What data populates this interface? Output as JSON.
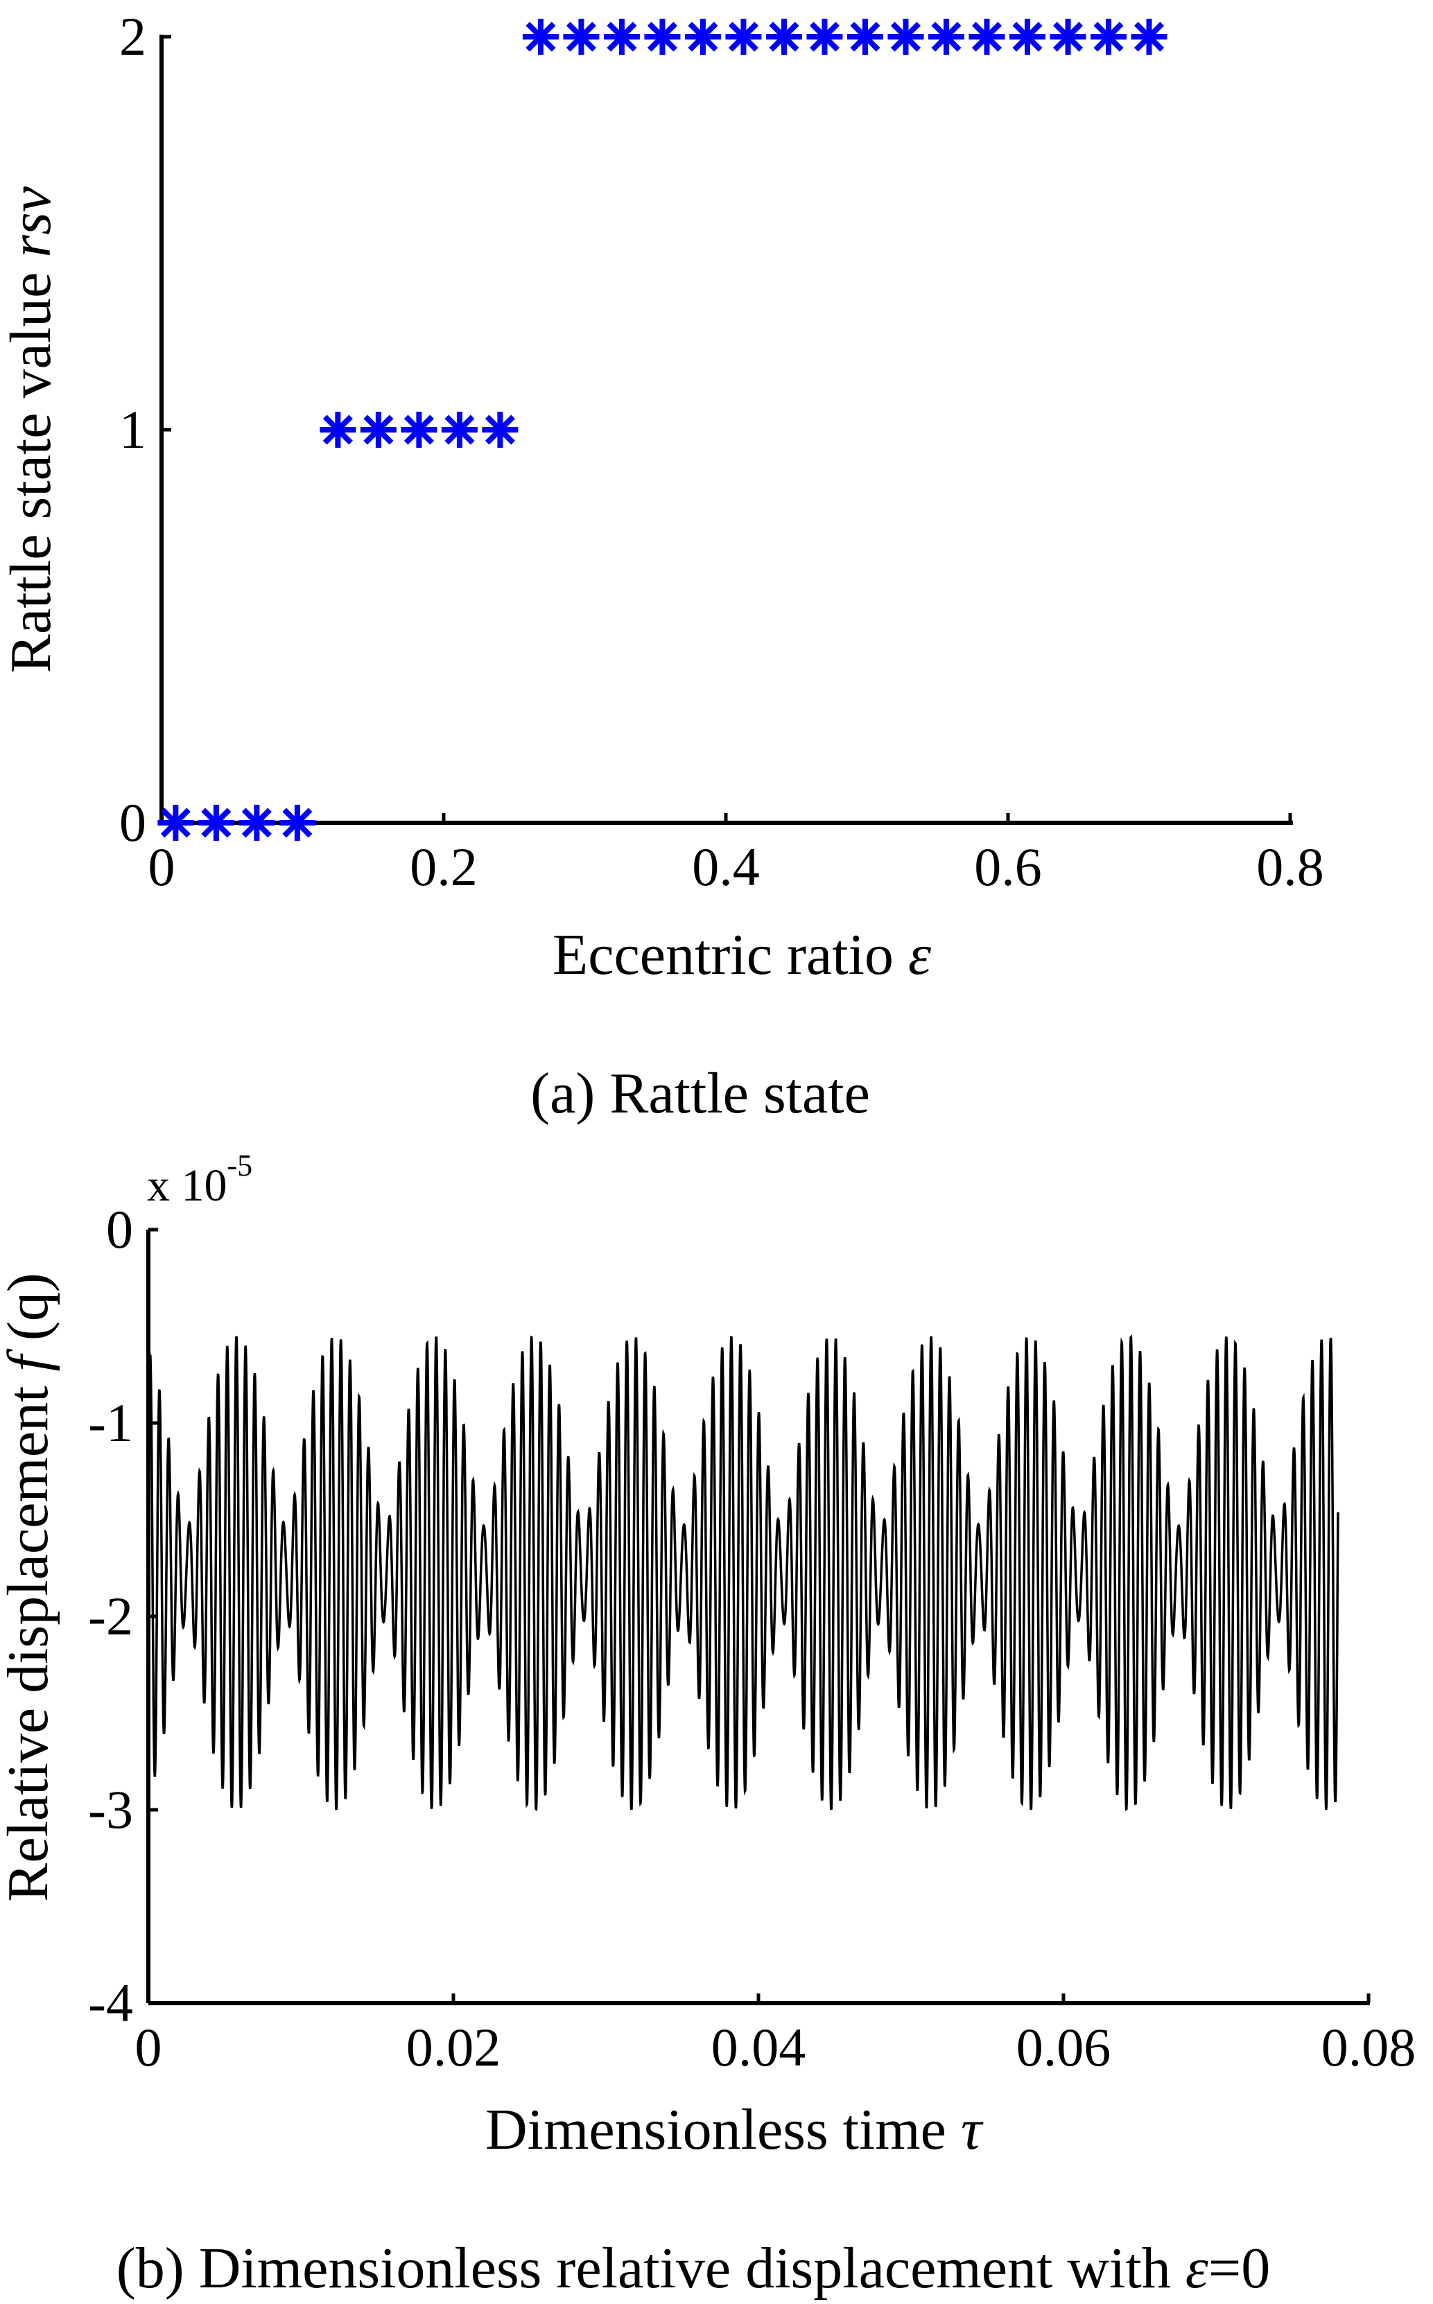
{
  "chart_data": [
    {
      "type": "scatter",
      "caption": "(a) Rattle state",
      "xlabel": "Eccentric ratio",
      "xlabel_symbol": "ε",
      "ylabel": "Rattle state value",
      "ylabel_symbol": "rsv",
      "xlim": [
        0,
        0.8
      ],
      "ylim": [
        0,
        2
      ],
      "xticks": [
        "0",
        "0.2",
        "0.4",
        "0.6",
        "0.8"
      ],
      "xtick_values": [
        0,
        0.2,
        0.4,
        0.6,
        0.8
      ],
      "yticks": [
        "0",
        "1",
        "2"
      ],
      "ytick_values": [
        0,
        1,
        2
      ],
      "marker": "asterisk",
      "color": "#0000ff",
      "x": [
        0.01,
        0.03875,
        0.0675,
        0.09625,
        0.125,
        0.15375,
        0.1825,
        0.21125,
        0.24,
        0.26875,
        0.2975,
        0.32625,
        0.355,
        0.38375,
        0.4125,
        0.44125,
        0.47,
        0.49875,
        0.5275,
        0.55625,
        0.585,
        0.61375,
        0.6425,
        0.67125,
        0.7
      ],
      "y": [
        0,
        0,
        0,
        0,
        1,
        1,
        1,
        1,
        1,
        2,
        2,
        2,
        2,
        2,
        2,
        2,
        2,
        2,
        2,
        2,
        2,
        2,
        2,
        2,
        2
      ],
      "grid": false
    },
    {
      "type": "line",
      "caption_prefix": "(b) Dimensionless relative displacement with ",
      "caption_symbol": "ε",
      "caption_suffix": "=0",
      "xlabel": "Dimensionless time",
      "xlabel_symbol": "τ",
      "ylabel": "Relative displacement",
      "ylabel_symbol_f": "f",
      "ylabel_symbol_q": "(q)",
      "y_multiplier_base": "x 10",
      "y_multiplier_exp": "-5",
      "xlim": [
        0,
        0.08
      ],
      "ylim": [
        -4,
        0
      ],
      "xticks": [
        "0",
        "0.02",
        "0.04",
        "0.06",
        "0.08"
      ],
      "xtick_values": [
        0,
        0.02,
        0.04,
        0.06,
        0.08
      ],
      "yticks": [
        "0",
        "-1",
        "-2",
        "-3",
        "-4"
      ],
      "ytick_values": [
        0,
        -1,
        -2,
        -3,
        -4
      ],
      "color": "#000000",
      "series": [
        {
          "name": "f(q)",
          "x_range": [
            0,
            0.078
          ],
          "mean": -1.78,
          "max": -0.55,
          "min": -3.0,
          "cycles": 125,
          "beat_cycles": 12
        }
      ],
      "grid": false
    }
  ]
}
